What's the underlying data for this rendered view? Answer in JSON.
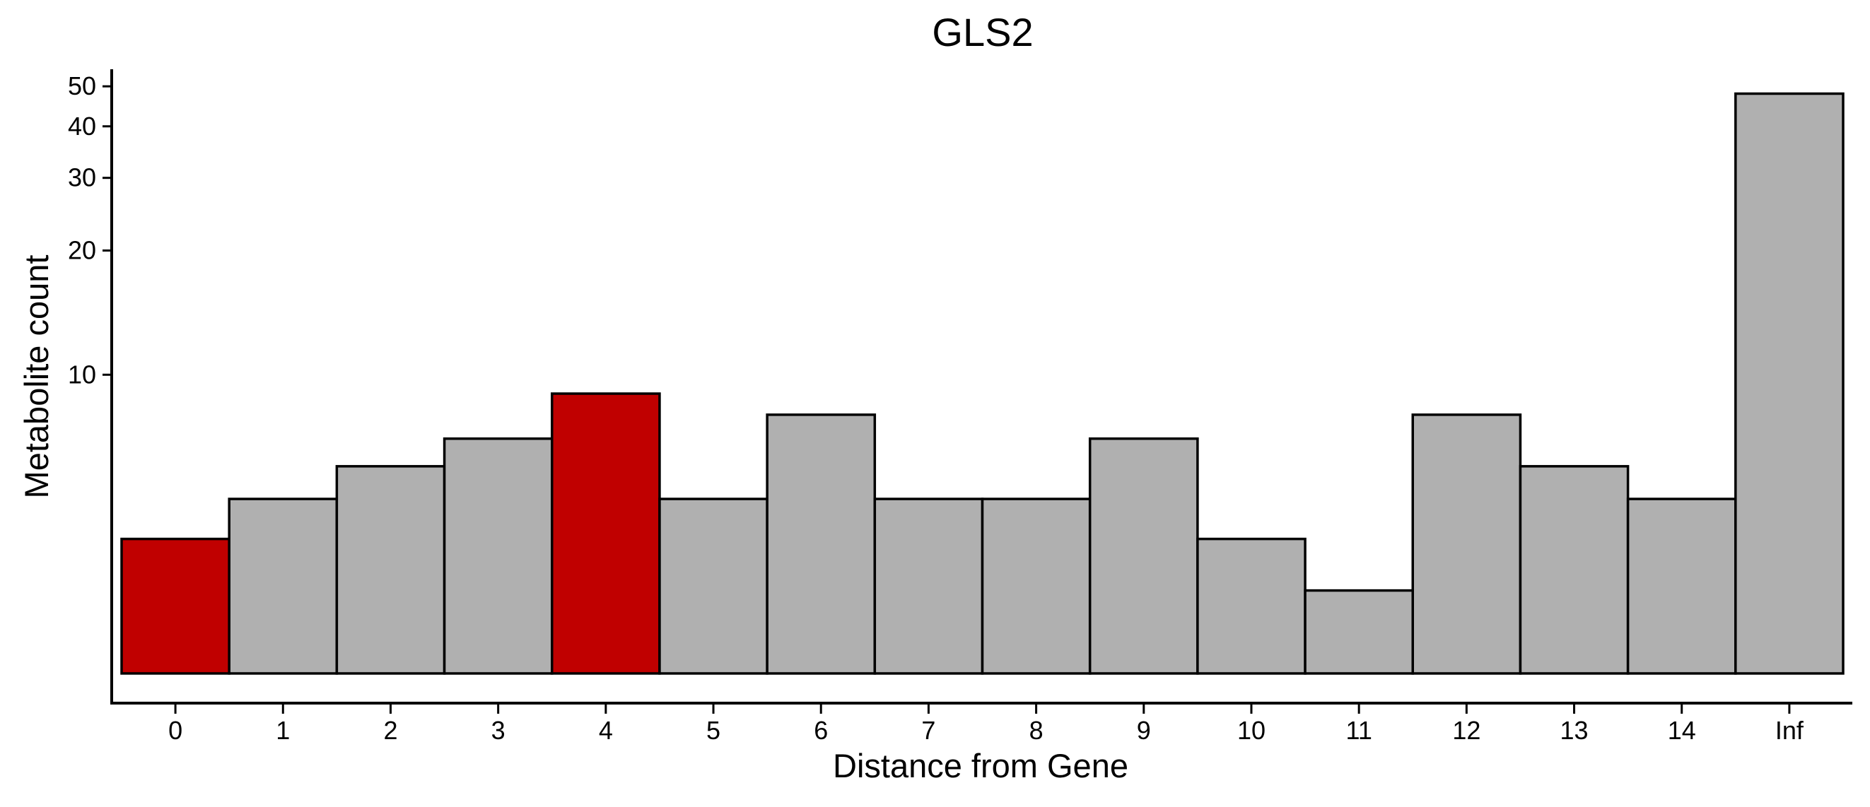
{
  "chart_data": {
    "type": "bar",
    "title": "GLS2",
    "xlabel": "Distance from Gene",
    "ylabel": "Metabolite count",
    "y_scale": "log",
    "ylim": [
      1.6,
      55
    ],
    "y_ticks": [
      10,
      20,
      30,
      40,
      50
    ],
    "categories": [
      "0",
      "1",
      "2",
      "3",
      "4",
      "5",
      "6",
      "7",
      "8",
      "9",
      "10",
      "11",
      "12",
      "13",
      "14",
      "Inf"
    ],
    "values": [
      4,
      5,
      6,
      7,
      9,
      5,
      8,
      5,
      5,
      7,
      4,
      3,
      8,
      6,
      5,
      48
    ],
    "highlight": [
      true,
      false,
      false,
      false,
      true,
      false,
      false,
      false,
      false,
      false,
      false,
      false,
      false,
      false,
      false,
      false
    ],
    "colors": {
      "highlight": "#C00000",
      "default": "#B0B0B0",
      "outline": "#000000"
    }
  }
}
